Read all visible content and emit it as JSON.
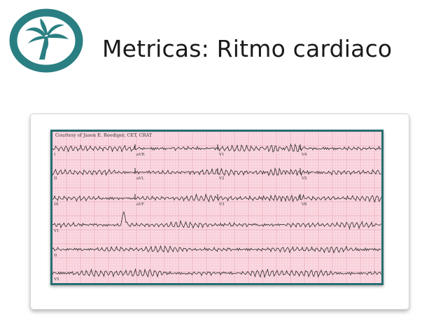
{
  "header": {
    "title": "Metricas: Ritmo cardiaco",
    "logo_icon": "palm-tree-icon",
    "logo_color": "#2a7f82"
  },
  "ecg": {
    "courtesy": "Courtesy of Jason E. Roediger, CET, CRAT",
    "frame_color": "#276f72",
    "paper_color": "#fbdbe3",
    "grid_color": "#e9a6b6",
    "trace_color": "#2a2a2a",
    "leads": [
      {
        "label": "I"
      },
      {
        "label": "aVR"
      },
      {
        "label": "V1"
      },
      {
        "label": "V4"
      },
      {
        "label": "II"
      },
      {
        "label": "aVL"
      },
      {
        "label": "V2"
      },
      {
        "label": "V5"
      },
      {
        "label": "III"
      },
      {
        "label": "aVF"
      },
      {
        "label": "V3"
      },
      {
        "label": "V6"
      },
      {
        "label": "V1"
      },
      {
        "label": "II"
      },
      {
        "label": "V5"
      }
    ]
  }
}
